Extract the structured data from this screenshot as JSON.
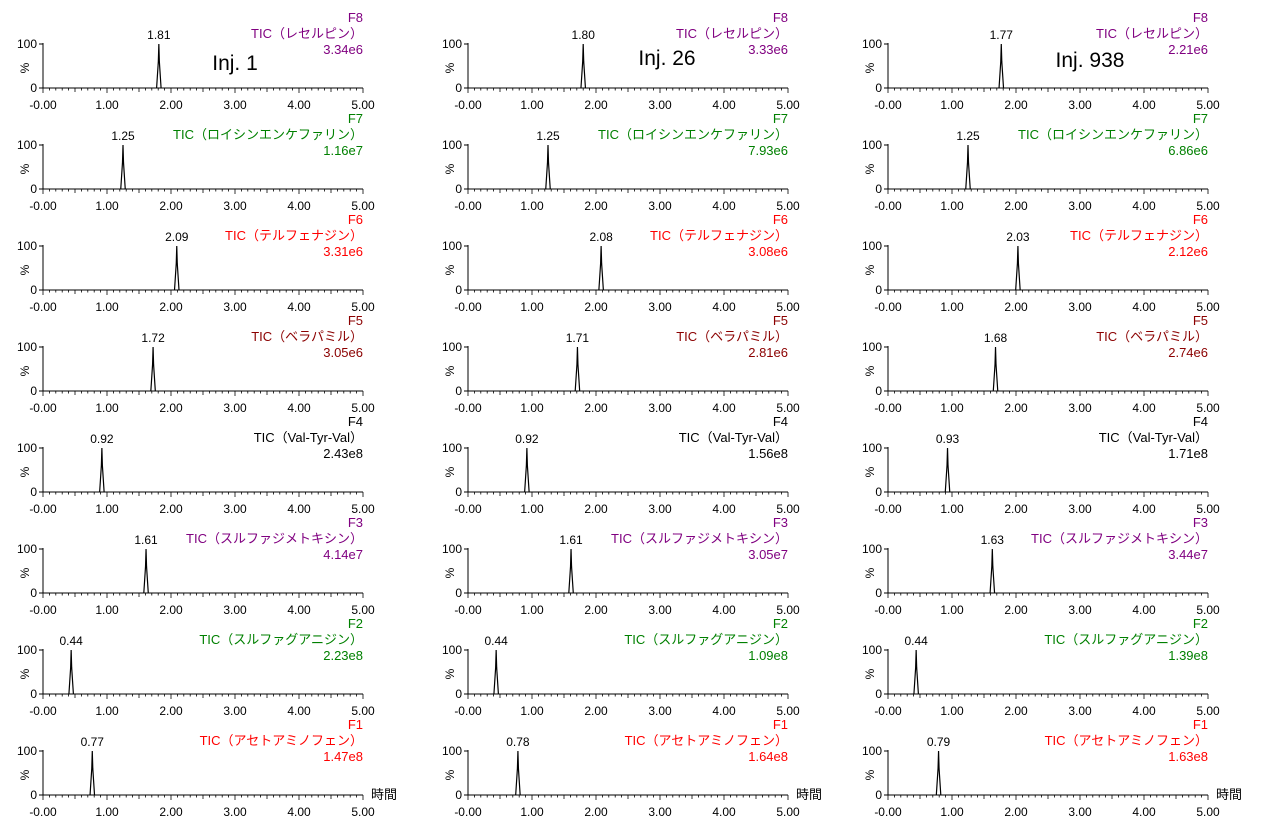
{
  "chart_data": {
    "type": "line",
    "y_axis_label": "%",
    "time_label": "時間",
    "x_ticks": [
      "-0.00",
      "1.00",
      "2.00",
      "3.00",
      "4.00",
      "5.00"
    ],
    "y_ticks": [
      "100",
      "0"
    ],
    "xlim": [
      0,
      5
    ],
    "ylim": [
      0,
      100
    ],
    "grid": false,
    "columns": [
      {
        "injection": "Inj. 1",
        "traces": [
          {
            "function": "F8",
            "name": "TIC（レセルピン）",
            "intensity": "3.34e6",
            "color": "#800080",
            "peak_rt": 1.81,
            "peak_label": "1.81"
          },
          {
            "function": "F7",
            "name": "TIC（ロイシンエンケファリン）",
            "intensity": "1.16e7",
            "color": "#008000",
            "peak_rt": 1.25,
            "peak_label": "1.25"
          },
          {
            "function": "F6",
            "name": "TIC（テルフェナジン）",
            "intensity": "3.31e6",
            "color": "#ff0000",
            "peak_rt": 2.09,
            "peak_label": "2.09"
          },
          {
            "function": "F5",
            "name": "TIC（ベラパミル）",
            "intensity": "3.05e6",
            "color": "#8b0000",
            "peak_rt": 1.72,
            "peak_label": "1.72"
          },
          {
            "function": "F4",
            "name": "TIC（Val-Tyr-Val）",
            "intensity": "2.43e8",
            "color": "#000000",
            "peak_rt": 0.92,
            "peak_label": "0.92"
          },
          {
            "function": "F3",
            "name": "TIC（スルファジメトキシン）",
            "intensity": "4.14e7",
            "color": "#800080",
            "peak_rt": 1.61,
            "peak_label": "1.61"
          },
          {
            "function": "F2",
            "name": "TIC（スルファグアニジン）",
            "intensity": "2.23e8",
            "color": "#008000",
            "peak_rt": 0.44,
            "peak_label": "0.44"
          },
          {
            "function": "F1",
            "name": "TIC（アセトアミノフェン）",
            "intensity": "1.47e8",
            "color": "#ff0000",
            "peak_rt": 0.77,
            "peak_label": "0.77"
          }
        ]
      },
      {
        "injection": "Inj. 26",
        "traces": [
          {
            "function": "F8",
            "name": "TIC（レセルピン）",
            "intensity": "3.33e6",
            "color": "#800080",
            "peak_rt": 1.8,
            "peak_label": "1.80"
          },
          {
            "function": "F7",
            "name": "TIC（ロイシンエンケファリン）",
            "intensity": "7.93e6",
            "color": "#008000",
            "peak_rt": 1.25,
            "peak_label": "1.25"
          },
          {
            "function": "F6",
            "name": "TIC（テルフェナジン）",
            "intensity": "3.08e6",
            "color": "#ff0000",
            "peak_rt": 2.08,
            "peak_label": "2.08"
          },
          {
            "function": "F5",
            "name": "TIC（ベラパミル）",
            "intensity": "2.81e6",
            "color": "#8b0000",
            "peak_rt": 1.71,
            "peak_label": "1.71"
          },
          {
            "function": "F4",
            "name": "TIC（Val-Tyr-Val）",
            "intensity": "1.56e8",
            "color": "#000000",
            "peak_rt": 0.92,
            "peak_label": "0.92"
          },
          {
            "function": "F3",
            "name": "TIC（スルファジメトキシン）",
            "intensity": "3.05e7",
            "color": "#800080",
            "peak_rt": 1.61,
            "peak_label": "1.61"
          },
          {
            "function": "F2",
            "name": "TIC（スルファグアニジン）",
            "intensity": "1.09e8",
            "color": "#008000",
            "peak_rt": 0.44,
            "peak_label": "0.44"
          },
          {
            "function": "F1",
            "name": "TIC（アセトアミノフェン）",
            "intensity": "1.64e8",
            "color": "#ff0000",
            "peak_rt": 0.78,
            "peak_label": "0.78"
          }
        ]
      },
      {
        "injection": "Inj. 938",
        "traces": [
          {
            "function": "F8",
            "name": "TIC（レセルピン）",
            "intensity": "2.21e6",
            "color": "#800080",
            "peak_rt": 1.77,
            "peak_label": "1.77"
          },
          {
            "function": "F7",
            "name": "TIC（ロイシンエンケファリン）",
            "intensity": "6.86e6",
            "color": "#008000",
            "peak_rt": 1.25,
            "peak_label": "1.25"
          },
          {
            "function": "F6",
            "name": "TIC（テルフェナジン）",
            "intensity": "2.12e6",
            "color": "#ff0000",
            "peak_rt": 2.03,
            "peak_label": "2.03"
          },
          {
            "function": "F5",
            "name": "TIC（ベラパミル）",
            "intensity": "2.74e6",
            "color": "#8b0000",
            "peak_rt": 1.68,
            "peak_label": "1.68"
          },
          {
            "function": "F4",
            "name": "TIC（Val-Tyr-Val）",
            "intensity": "1.71e8",
            "color": "#000000",
            "peak_rt": 0.93,
            "peak_label": "0.93"
          },
          {
            "function": "F3",
            "name": "TIC（スルファジメトキシン）",
            "intensity": "3.44e7",
            "color": "#800080",
            "peak_rt": 1.63,
            "peak_label": "1.63"
          },
          {
            "function": "F2",
            "name": "TIC（スルファグアニジン）",
            "intensity": "1.39e8",
            "color": "#008000",
            "peak_rt": 0.44,
            "peak_label": "0.44"
          },
          {
            "function": "F1",
            "name": "TIC（アセトアミノフェン）",
            "intensity": "1.63e8",
            "color": "#ff0000",
            "peak_rt": 0.79,
            "peak_label": "0.79"
          }
        ]
      }
    ]
  }
}
